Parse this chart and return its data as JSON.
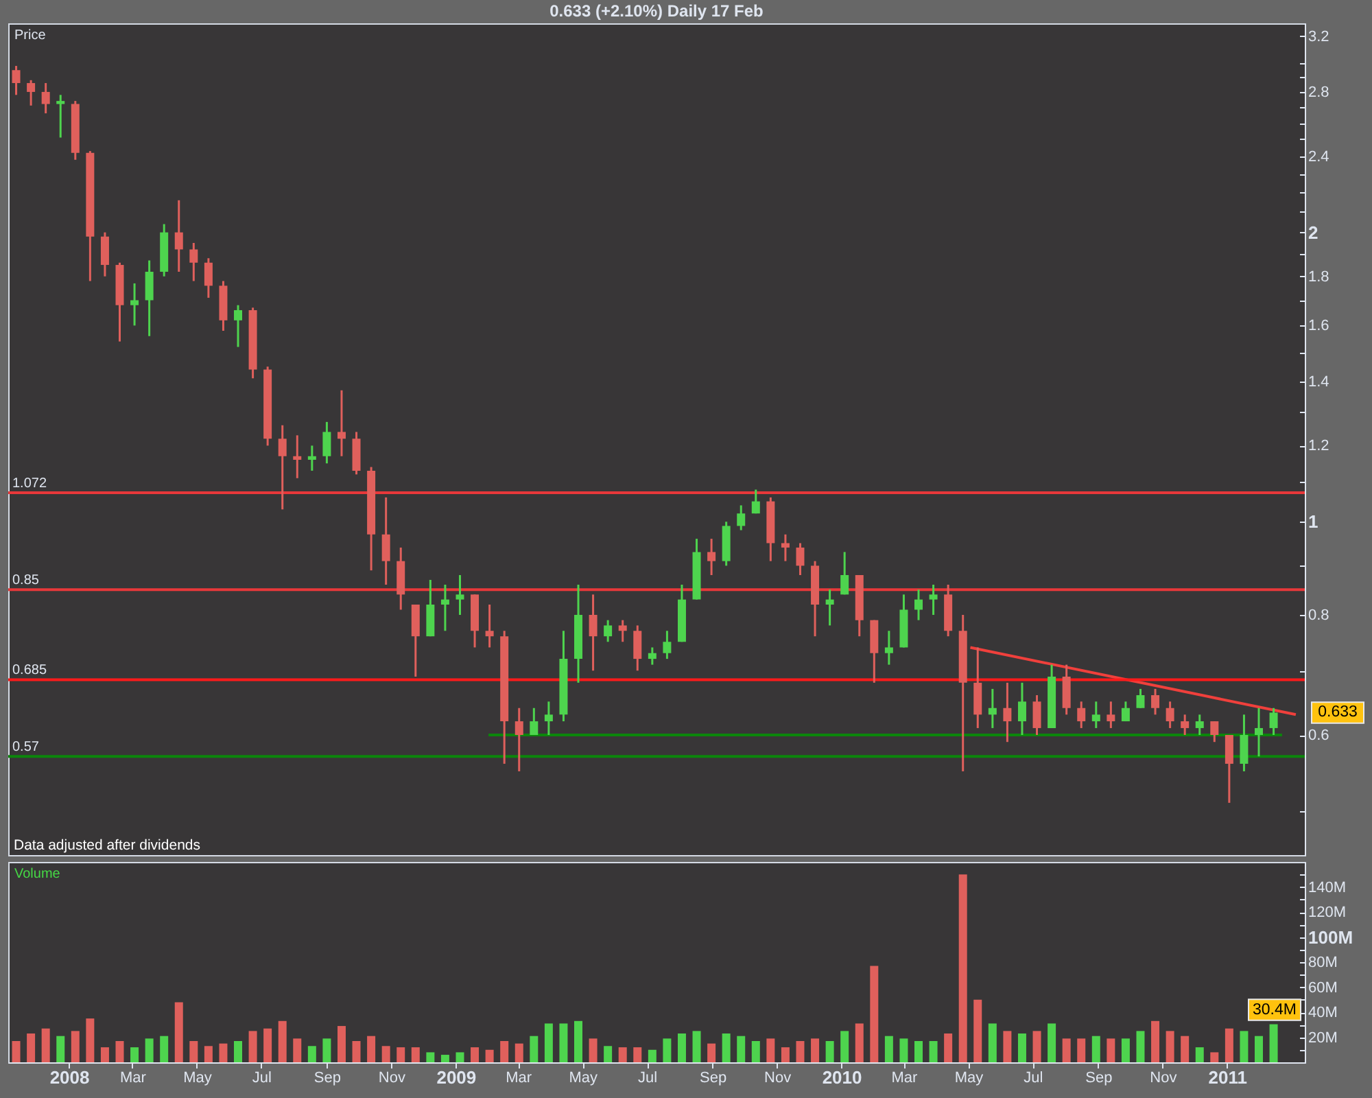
{
  "chart_data": [
    {
      "type": "candlestick",
      "title": "0.633 (+2.10%) Daily 17 Feb",
      "ylabel": "Price",
      "x": [
        "2007-11-12",
        "2007-11-26",
        "2007-12-10",
        "2007-12-24",
        "2008-01-07",
        "2008-01-21",
        "2008-02-04",
        "2008-02-18",
        "2008-03-03",
        "2008-03-17",
        "2008-03-31",
        "2008-04-14",
        "2008-04-28",
        "2008-05-12",
        "2008-05-26",
        "2008-06-09",
        "2008-06-23",
        "2008-07-07",
        "2008-07-21",
        "2008-08-04",
        "2008-08-18",
        "2008-09-01",
        "2008-09-15",
        "2008-09-29",
        "2008-10-13",
        "2008-10-27",
        "2008-11-10",
        "2008-11-24",
        "2008-12-08",
        "2008-12-22",
        "2009-01-05",
        "2009-01-19",
        "2009-02-02",
        "2009-02-16",
        "2009-03-02",
        "2009-03-16",
        "2009-03-30",
        "2009-04-13",
        "2009-04-27",
        "2009-05-11",
        "2009-05-25",
        "2009-06-08",
        "2009-06-22",
        "2009-07-06",
        "2009-07-20",
        "2009-08-03",
        "2009-08-17",
        "2009-08-31",
        "2009-09-14",
        "2009-09-28",
        "2009-10-12",
        "2009-10-26",
        "2009-11-09",
        "2009-11-23",
        "2009-12-07",
        "2009-12-21",
        "2010-01-04",
        "2010-01-18",
        "2010-02-01",
        "2010-02-15",
        "2010-03-01",
        "2010-03-15",
        "2010-03-29",
        "2010-04-12",
        "2010-04-26",
        "2010-05-10",
        "2010-05-24",
        "2010-06-07",
        "2010-06-21",
        "2010-07-05",
        "2010-07-19",
        "2010-08-02",
        "2010-08-16",
        "2010-08-30",
        "2010-09-13",
        "2010-09-27",
        "2010-10-11",
        "2010-10-25",
        "2010-11-08",
        "2010-11-22",
        "2010-12-06",
        "2010-12-20",
        "2011-01-03",
        "2011-01-17",
        "2011-01-31",
        "2011-02-14"
      ],
      "ohlc": [
        [
          2.95,
          2.98,
          2.78,
          2.86
        ],
        [
          2.86,
          2.88,
          2.71,
          2.8
        ],
        [
          2.8,
          2.86,
          2.66,
          2.72
        ],
        [
          2.72,
          2.78,
          2.51,
          2.74
        ],
        [
          2.72,
          2.74,
          2.38,
          2.42
        ],
        [
          2.42,
          2.43,
          1.78,
          1.98
        ],
        [
          1.98,
          2.0,
          1.8,
          1.85
        ],
        [
          1.85,
          1.86,
          1.54,
          1.68
        ],
        [
          1.68,
          1.77,
          1.6,
          1.7
        ],
        [
          1.7,
          1.87,
          1.56,
          1.82
        ],
        [
          1.82,
          2.04,
          1.8,
          2.0
        ],
        [
          2.0,
          2.16,
          1.82,
          1.92
        ],
        [
          1.92,
          1.95,
          1.78,
          1.86
        ],
        [
          1.86,
          1.88,
          1.71,
          1.76
        ],
        [
          1.76,
          1.78,
          1.58,
          1.62
        ],
        [
          1.62,
          1.68,
          1.52,
          1.66
        ],
        [
          1.66,
          1.67,
          1.41,
          1.44
        ],
        [
          1.44,
          1.45,
          1.2,
          1.22
        ],
        [
          1.22,
          1.26,
          1.03,
          1.17
        ],
        [
          1.17,
          1.23,
          1.11,
          1.16
        ],
        [
          1.16,
          1.2,
          1.13,
          1.17
        ],
        [
          1.17,
          1.27,
          1.15,
          1.24
        ],
        [
          1.24,
          1.37,
          1.17,
          1.22
        ],
        [
          1.22,
          1.24,
          1.12,
          1.13
        ],
        [
          1.13,
          1.14,
          0.89,
          0.97
        ],
        [
          0.97,
          1.06,
          0.86,
          0.91
        ],
        [
          0.91,
          0.94,
          0.81,
          0.84
        ],
        [
          0.82,
          0.82,
          0.69,
          0.76
        ],
        [
          0.76,
          0.87,
          0.76,
          0.82
        ],
        [
          0.82,
          0.86,
          0.77,
          0.83
        ],
        [
          0.83,
          0.88,
          0.8,
          0.84
        ],
        [
          0.84,
          0.84,
          0.74,
          0.77
        ],
        [
          0.77,
          0.82,
          0.74,
          0.76
        ],
        [
          0.76,
          0.77,
          0.56,
          0.62
        ],
        [
          0.62,
          0.64,
          0.55,
          0.6
        ],
        [
          0.6,
          0.64,
          0.6,
          0.62
        ],
        [
          0.62,
          0.65,
          0.6,
          0.63
        ],
        [
          0.63,
          0.77,
          0.62,
          0.72
        ],
        [
          0.72,
          0.86,
          0.68,
          0.8
        ],
        [
          0.8,
          0.84,
          0.7,
          0.76
        ],
        [
          0.76,
          0.79,
          0.75,
          0.78
        ],
        [
          0.78,
          0.79,
          0.75,
          0.77
        ],
        [
          0.77,
          0.78,
          0.7,
          0.72
        ],
        [
          0.72,
          0.74,
          0.71,
          0.73
        ],
        [
          0.73,
          0.77,
          0.72,
          0.75
        ],
        [
          0.75,
          0.86,
          0.75,
          0.83
        ],
        [
          0.83,
          0.96,
          0.83,
          0.93
        ],
        [
          0.93,
          0.96,
          0.88,
          0.91
        ],
        [
          0.91,
          1.0,
          0.9,
          0.99
        ],
        [
          0.99,
          1.04,
          0.98,
          1.02
        ],
        [
          1.02,
          1.08,
          1.02,
          1.05
        ],
        [
          1.05,
          1.06,
          0.91,
          0.95
        ],
        [
          0.95,
          0.97,
          0.91,
          0.94
        ],
        [
          0.94,
          0.95,
          0.88,
          0.9
        ],
        [
          0.9,
          0.91,
          0.76,
          0.82
        ],
        [
          0.82,
          0.85,
          0.78,
          0.83
        ],
        [
          0.84,
          0.93,
          0.84,
          0.88
        ],
        [
          0.88,
          0.88,
          0.76,
          0.79
        ],
        [
          0.79,
          0.79,
          0.68,
          0.73
        ],
        [
          0.73,
          0.77,
          0.71,
          0.74
        ],
        [
          0.74,
          0.84,
          0.74,
          0.81
        ],
        [
          0.81,
          0.85,
          0.79,
          0.83
        ],
        [
          0.83,
          0.86,
          0.8,
          0.84
        ],
        [
          0.84,
          0.86,
          0.76,
          0.77
        ],
        [
          0.77,
          0.8,
          0.55,
          0.68
        ],
        [
          0.68,
          0.74,
          0.61,
          0.63
        ],
        [
          0.63,
          0.67,
          0.61,
          0.64
        ],
        [
          0.64,
          0.68,
          0.59,
          0.62
        ],
        [
          0.62,
          0.68,
          0.6,
          0.65
        ],
        [
          0.65,
          0.66,
          0.6,
          0.61
        ],
        [
          0.61,
          0.71,
          0.61,
          0.69
        ],
        [
          0.69,
          0.71,
          0.63,
          0.64
        ],
        [
          0.64,
          0.65,
          0.61,
          0.62
        ],
        [
          0.62,
          0.65,
          0.61,
          0.63
        ],
        [
          0.63,
          0.65,
          0.61,
          0.62
        ],
        [
          0.62,
          0.65,
          0.62,
          0.64
        ],
        [
          0.64,
          0.67,
          0.64,
          0.66
        ],
        [
          0.66,
          0.67,
          0.63,
          0.64
        ],
        [
          0.64,
          0.65,
          0.61,
          0.62
        ],
        [
          0.62,
          0.63,
          0.6,
          0.61
        ],
        [
          0.61,
          0.63,
          0.6,
          0.62
        ],
        [
          0.62,
          0.62,
          0.59,
          0.6
        ],
        [
          0.6,
          0.6,
          0.51,
          0.56
        ],
        [
          0.56,
          0.63,
          0.55,
          0.6
        ],
        [
          0.6,
          0.64,
          0.57,
          0.61
        ],
        [
          0.61,
          0.64,
          0.6,
          0.633
        ]
      ],
      "colors": [
        "#e0605c",
        "#e0605c",
        "#e0605c",
        "#4ed44e",
        "#e0605c",
        "#e0605c",
        "#e0605c",
        "#e0605c",
        "#4ed44e",
        "#4ed44e",
        "#4ed44e",
        "#e0605c",
        "#e0605c",
        "#e0605c",
        "#e0605c",
        "#4ed44e",
        "#e0605c",
        "#e0605c",
        "#e0605c",
        "#e0605c",
        "#4ed44e",
        "#4ed44e",
        "#e0605c",
        "#e0605c",
        "#e0605c",
        "#e0605c",
        "#e0605c",
        "#e0605c",
        "#4ed44e",
        "#4ed44e",
        "#4ed44e",
        "#e0605c",
        "#e0605c",
        "#e0605c",
        "#e0605c",
        "#4ed44e",
        "#4ed44e",
        "#4ed44e",
        "#4ed44e",
        "#e0605c",
        "#4ed44e",
        "#e0605c",
        "#e0605c",
        "#4ed44e",
        "#4ed44e",
        "#4ed44e",
        "#4ed44e",
        "#e0605c",
        "#4ed44e",
        "#4ed44e",
        "#4ed44e",
        "#e0605c",
        "#e0605c",
        "#e0605c",
        "#e0605c",
        "#4ed44e",
        "#4ed44e",
        "#e0605c",
        "#e0605c",
        "#4ed44e",
        "#4ed44e",
        "#4ed44e",
        "#4ed44e",
        "#e0605c",
        "#e0605c",
        "#e0605c",
        "#4ed44e",
        "#e0605c",
        "#4ed44e",
        "#e0605c",
        "#4ed44e",
        "#e0605c",
        "#e0605c",
        "#4ed44e",
        "#e0605c",
        "#4ed44e",
        "#4ed44e",
        "#e0605c",
        "#e0605c",
        "#e0605c",
        "#4ed44e",
        "#e0605c",
        "#e0605c",
        "#4ed44e",
        "#4ed44e",
        "#4ed44e"
      ],
      "series": [
        {
          "type": "line",
          "color": "#0b860b",
          "x": [
            "2009-02-01",
            "2011-02-22"
          ],
          "values": [
            0.6,
            0.6
          ]
        },
        {
          "type": "line",
          "color": "#f0403c",
          "x": [
            "2010-05-03",
            "2011-03-07"
          ],
          "values": [
            0.74,
            0.63
          ]
        }
      ],
      "log": true,
      "xlim": [
        "2007-11-11",
        "2011-03-09"
      ],
      "ylim": [
        0.45,
        3.3
      ],
      "yticks": [
        {
          "value": 0.5,
          "label": null
        },
        0.6,
        {
          "value": 0.7,
          "label": null
        },
        0.8,
        {
          "value": 0.9,
          "label": null
        },
        1,
        {
          "value": 1.1,
          "label": null
        },
        1.2,
        {
          "value": 1.3,
          "label": null
        },
        1.4,
        {
          "value": 1.5,
          "label": null
        },
        1.6,
        {
          "value": 1.7,
          "label": null
        },
        1.8,
        {
          "value": 1.9,
          "label": null
        },
        2,
        {
          "value": 2.1,
          "label": null
        },
        {
          "value": 2.2,
          "label": null
        },
        {
          "value": 2.3,
          "label": null
        },
        2.4,
        {
          "value": 2.5,
          "label": null
        },
        {
          "value": 2.6,
          "label": null
        },
        {
          "value": 2.7,
          "label": null
        },
        2.8,
        {
          "value": 2.9,
          "label": null
        },
        {
          "value": 3,
          "label": null
        },
        3.2
      ],
      "tick_labels": "y",
      "ref_lines": [
        {
          "axis": "y",
          "value": 1.072,
          "label": "1.072",
          "color": "#e8383a"
        },
        {
          "axis": "y",
          "value": 0.85,
          "label": "0.85",
          "color": "#e8383a"
        },
        {
          "axis": "y",
          "value": 0.685,
          "label": "0.685",
          "color": "#ff1a1a"
        },
        {
          "axis": "y",
          "value": 0.57,
          "label": "0.57",
          "color": "#0b860b"
        }
      ],
      "annotations": [
        "Data adjusted after dividends",
        "0.633"
      ]
    },
    {
      "type": "bar",
      "ylabel": "Volume",
      "x": [
        "2007-11-12",
        "2007-11-26",
        "2007-12-10",
        "2007-12-24",
        "2008-01-07",
        "2008-01-21",
        "2008-02-04",
        "2008-02-18",
        "2008-03-03",
        "2008-03-17",
        "2008-03-31",
        "2008-04-14",
        "2008-04-28",
        "2008-05-12",
        "2008-05-26",
        "2008-06-09",
        "2008-06-23",
        "2008-07-07",
        "2008-07-21",
        "2008-08-04",
        "2008-08-18",
        "2008-09-01",
        "2008-09-15",
        "2008-09-29",
        "2008-10-13",
        "2008-10-27",
        "2008-11-10",
        "2008-11-24",
        "2008-12-08",
        "2008-12-22",
        "2009-01-05",
        "2009-01-19",
        "2009-02-02",
        "2009-02-16",
        "2009-03-02",
        "2009-03-16",
        "2009-03-30",
        "2009-04-13",
        "2009-04-27",
        "2009-05-11",
        "2009-05-25",
        "2009-06-08",
        "2009-06-22",
        "2009-07-06",
        "2009-07-20",
        "2009-08-03",
        "2009-08-17",
        "2009-08-31",
        "2009-09-14",
        "2009-09-28",
        "2009-10-12",
        "2009-10-26",
        "2009-11-09",
        "2009-11-23",
        "2009-12-07",
        "2009-12-21",
        "2010-01-04",
        "2010-01-18",
        "2010-02-01",
        "2010-02-15",
        "2010-03-01",
        "2010-03-15",
        "2010-03-29",
        "2010-04-12",
        "2010-04-26",
        "2010-05-10",
        "2010-05-24",
        "2010-06-07",
        "2010-06-21",
        "2010-07-05",
        "2010-07-19",
        "2010-08-02",
        "2010-08-16",
        "2010-08-30",
        "2010-09-13",
        "2010-09-27",
        "2010-10-11",
        "2010-10-25",
        "2010-11-08",
        "2010-11-22",
        "2010-12-06",
        "2010-12-20",
        "2011-01-03",
        "2011-01-17",
        "2011-01-31",
        "2011-02-14"
      ],
      "values": [
        17,
        23,
        27,
        21,
        25,
        35,
        12,
        17,
        12,
        19,
        21,
        48,
        17,
        13,
        15,
        17,
        25,
        27,
        33,
        19,
        13,
        19,
        29,
        17,
        21,
        13,
        12,
        12,
        8,
        6,
        8,
        12,
        10,
        17,
        15,
        21,
        31,
        31,
        33,
        19,
        13,
        12,
        12,
        10,
        19,
        23,
        25,
        15,
        23,
        21,
        17,
        19,
        12,
        17,
        19,
        17,
        25,
        31,
        77,
        21,
        19,
        17,
        17,
        23,
        150,
        50,
        31,
        25,
        23,
        25,
        31,
        19,
        19,
        21,
        19,
        19,
        25,
        33,
        25,
        21,
        12,
        8,
        27,
        25,
        21,
        30.4
      ],
      "colors": [
        "#e0605c",
        "#e0605c",
        "#e0605c",
        "#4ed44e",
        "#e0605c",
        "#e0605c",
        "#e0605c",
        "#e0605c",
        "#4ed44e",
        "#4ed44e",
        "#4ed44e",
        "#e0605c",
        "#e0605c",
        "#e0605c",
        "#e0605c",
        "#4ed44e",
        "#e0605c",
        "#e0605c",
        "#e0605c",
        "#e0605c",
        "#4ed44e",
        "#4ed44e",
        "#e0605c",
        "#e0605c",
        "#e0605c",
        "#e0605c",
        "#e0605c",
        "#e0605c",
        "#4ed44e",
        "#4ed44e",
        "#4ed44e",
        "#e0605c",
        "#e0605c",
        "#e0605c",
        "#e0605c",
        "#4ed44e",
        "#4ed44e",
        "#4ed44e",
        "#4ed44e",
        "#e0605c",
        "#4ed44e",
        "#e0605c",
        "#e0605c",
        "#4ed44e",
        "#4ed44e",
        "#4ed44e",
        "#4ed44e",
        "#e0605c",
        "#4ed44e",
        "#4ed44e",
        "#4ed44e",
        "#e0605c",
        "#e0605c",
        "#e0605c",
        "#e0605c",
        "#4ed44e",
        "#4ed44e",
        "#e0605c",
        "#e0605c",
        "#4ed44e",
        "#4ed44e",
        "#4ed44e",
        "#4ed44e",
        "#e0605c",
        "#e0605c",
        "#e0605c",
        "#4ed44e",
        "#e0605c",
        "#4ed44e",
        "#e0605c",
        "#4ed44e",
        "#e0605c",
        "#e0605c",
        "#4ed44e",
        "#e0605c",
        "#4ed44e",
        "#4ed44e",
        "#e0605c",
        "#e0605c",
        "#e0605c",
        "#4ed44e",
        "#e0605c",
        "#e0605c",
        "#4ed44e",
        "#4ed44e",
        "#4ed44e"
      ],
      "xlim": [
        "2007-11-11",
        "2011-03-09"
      ],
      "xticks": [
        {
          "value": "2008-01-01",
          "label": "2008"
        },
        {
          "value": "2008-03-01",
          "label": "Mar"
        },
        {
          "value": "2008-05-01",
          "label": "May"
        },
        {
          "value": "2008-07-01",
          "label": "Jul"
        },
        {
          "value": "2008-09-01",
          "label": "Sep"
        },
        {
          "value": "2008-11-01",
          "label": "Nov"
        },
        {
          "value": "2009-01-01",
          "label": "2009"
        },
        {
          "value": "2009-03-01",
          "label": "Mar"
        },
        {
          "value": "2009-05-01",
          "label": "May"
        },
        {
          "value": "2009-07-01",
          "label": "Jul"
        },
        {
          "value": "2009-09-01",
          "label": "Sep"
        },
        {
          "value": "2009-11-01",
          "label": "Nov"
        },
        {
          "value": "2010-01-01",
          "label": "2010"
        },
        {
          "value": "2010-03-01",
          "label": "Mar"
        },
        {
          "value": "2010-05-01",
          "label": "May"
        },
        {
          "value": "2010-07-01",
          "label": "Jul"
        },
        {
          "value": "2010-09-01",
          "label": "Sep"
        },
        {
          "value": "2010-11-01",
          "label": "Nov"
        },
        {
          "value": "2011-01-01",
          "label": "2011"
        }
      ],
      "ylim": [
        0,
        160
      ],
      "yticks": [
        {
          "value": 10,
          "label": null
        },
        {
          "value": 20,
          "label": "20M"
        },
        {
          "value": 30,
          "label": null
        },
        {
          "value": 40,
          "label": "40M"
        },
        {
          "value": 50,
          "label": null
        },
        {
          "value": 60,
          "label": "60M"
        },
        {
          "value": 70,
          "label": null
        },
        {
          "value": 80,
          "label": "80M"
        },
        {
          "value": 90,
          "label": null
        },
        {
          "value": 100,
          "label": "100M"
        },
        {
          "value": 110,
          "label": null
        },
        {
          "value": 120,
          "label": "120M"
        },
        {
          "value": 130,
          "label": null
        },
        {
          "value": 140,
          "label": "140M"
        },
        {
          "value": 150,
          "label": null
        }
      ],
      "annotations": [
        "30.4M"
      ]
    }
  ]
}
